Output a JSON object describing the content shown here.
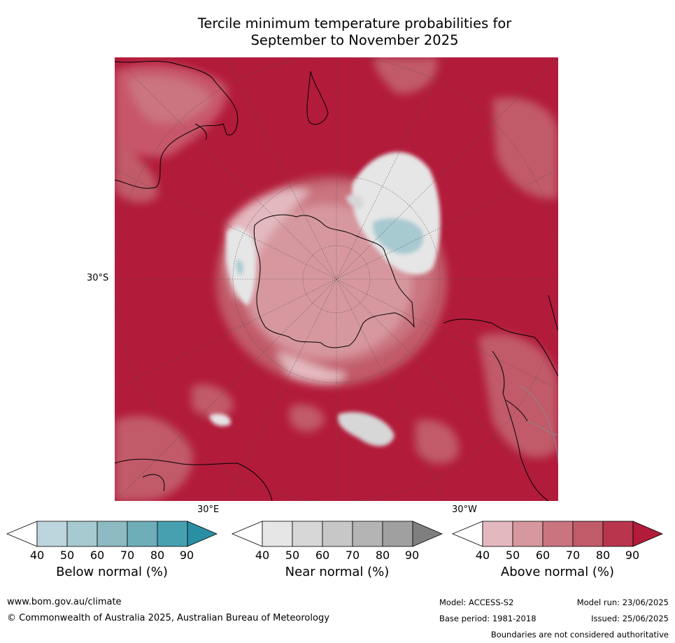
{
  "title_line1": "Tercile minimum temperature probabilities for",
  "title_line2": "September to November 2025",
  "axis": {
    "lat_label": "30°S",
    "lon_label_east": "30°E",
    "lon_label_west": "30°W"
  },
  "colorbars": [
    {
      "title": "Below normal (%)",
      "ticks": [
        "40",
        "50",
        "60",
        "70",
        "80",
        "90"
      ],
      "colors": [
        "#ffffff",
        "#bdd6dd",
        "#a7c9d0",
        "#8dbac3",
        "#6faeb9",
        "#47a0b0",
        "#2a8fa3"
      ]
    },
    {
      "title": "Near normal (%)",
      "ticks": [
        "40",
        "50",
        "60",
        "70",
        "80",
        "90"
      ],
      "colors": [
        "#ffffff",
        "#e6e6e6",
        "#d7d7d7",
        "#c7c7c7",
        "#b4b4b4",
        "#a0a0a0",
        "#7f7f7f"
      ]
    },
    {
      "title": "Above normal (%)",
      "ticks": [
        "40",
        "50",
        "60",
        "70",
        "80",
        "90"
      ],
      "colors": [
        "#ffffff",
        "#e3b9bf",
        "#d7979f",
        "#ca7480",
        "#c15a69",
        "#b8354d",
        "#b21b3a"
      ]
    }
  ],
  "footer": {
    "website": "www.bom.gov.au/climate",
    "copyright": "© Commonwealth of Australia 2025, Australian Bureau of Meteorology",
    "model": "Model: ACCESS-S2",
    "model_run": "Model run: 23/06/2025",
    "base_period": "Base period: 1981-2018",
    "issued": "Issued: 25/06/2025",
    "disclaimer": "Boundaries are not considered authoritative"
  }
}
